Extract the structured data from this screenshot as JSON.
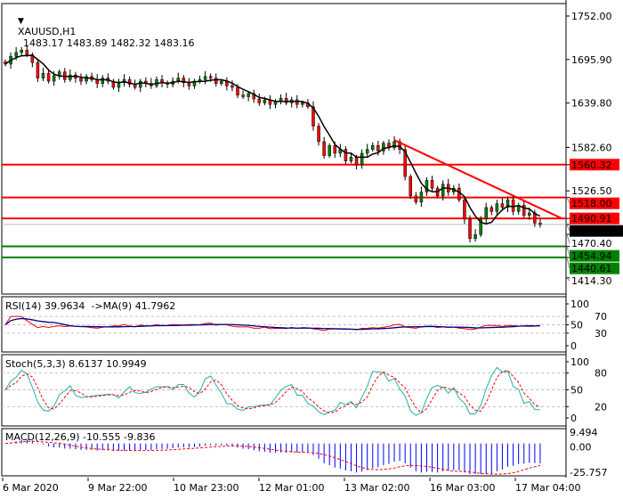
{
  "header": {
    "symbol": "XAUUSD,H1",
    "ohlc": "1483.17 1483.89 1482.32 1483.16"
  },
  "colors": {
    "bull": "#008000",
    "bear": "#ff0000",
    "ma": "#000000",
    "resistance": "#ff0000",
    "support": "#008000",
    "rsi": "#ff0000",
    "rsi_ma": "#000080",
    "stoch_main": "#20b2aa",
    "stoch_signal": "#ff0000",
    "macd_hist": "#0000ff",
    "macd_signal": "#ff0000"
  },
  "chart_data": {
    "type": "candlestick",
    "price_axis": {
      "ticks": [
        "1752.00",
        "1695.90",
        "1639.80",
        "1582.60",
        "1526.50",
        "1470.40",
        "1414.30"
      ],
      "range": [
        1380,
        1772
      ]
    },
    "time_axis": {
      "ticks": [
        "6 Mar 2020",
        "9 Mar 22:00",
        "10 Mar 23:00",
        "12 Mar 01:00",
        "13 Mar 02:00",
        "16 Mar 03:00",
        "17 Mar 04:00"
      ]
    },
    "closes": [
      1690,
      1700,
      1705,
      1708,
      1702,
      1692,
      1672,
      1678,
      1668,
      1675,
      1680,
      1670,
      1676,
      1672,
      1668,
      1674,
      1670,
      1665,
      1672,
      1668,
      1660,
      1666,
      1670,
      1664,
      1660,
      1668,
      1665,
      1662,
      1670,
      1666,
      1664,
      1668,
      1672,
      1666,
      1662,
      1668,
      1670,
      1674,
      1672,
      1665,
      1668,
      1662,
      1660,
      1650,
      1648,
      1652,
      1645,
      1640,
      1644,
      1638,
      1642,
      1646,
      1640,
      1644,
      1638,
      1640,
      1635,
      1610,
      1590,
      1572,
      1585,
      1575,
      1580,
      1565,
      1570,
      1560,
      1575,
      1580,
      1585,
      1578,
      1588,
      1582,
      1590,
      1580,
      1545,
      1520,
      1512,
      1525,
      1540,
      1530,
      1520,
      1535,
      1525,
      1530,
      1515,
      1490,
      1465,
      1470,
      1490,
      1505,
      1500,
      1510,
      1505,
      1515,
      1500,
      1508,
      1495,
      1498,
      1485,
      1483
    ],
    "last_price": "1483.16",
    "levels": [
      {
        "label": "1560.32",
        "value": 1560.32,
        "type": "resistance"
      },
      {
        "label": "1518.00",
        "value": 1518.0,
        "type": "resistance"
      },
      {
        "label": "1490.91",
        "value": 1490.91,
        "type": "resistance"
      },
      {
        "label": "1454.94",
        "value": 1454.94,
        "type": "support"
      },
      {
        "label": "1440.61",
        "value": 1440.61,
        "type": "support"
      }
    ],
    "trendline": {
      "from_bar": 72,
      "from_price": 1592,
      "to_bar": 103,
      "to_price": 1491
    }
  },
  "indicators": {
    "rsi": {
      "title": "RSI(14) 39.9634  ->MA(9) 41.7962",
      "ticks": [
        "100",
        "70",
        "50",
        "30",
        "0"
      ],
      "levels": [
        70,
        50,
        30
      ]
    },
    "stoch": {
      "title": "Stoch(5,3,3) 8.6137 10.9949",
      "ticks": [
        "100",
        "80",
        "50",
        "20",
        "0"
      ],
      "levels": [
        80,
        50,
        20
      ]
    },
    "macd": {
      "title": "MACD(12,26,9) -10.555 -9.836",
      "ticks": [
        "9.494",
        "0.00",
        "-25.757"
      ],
      "range": [
        -25.757,
        9.494
      ]
    }
  }
}
